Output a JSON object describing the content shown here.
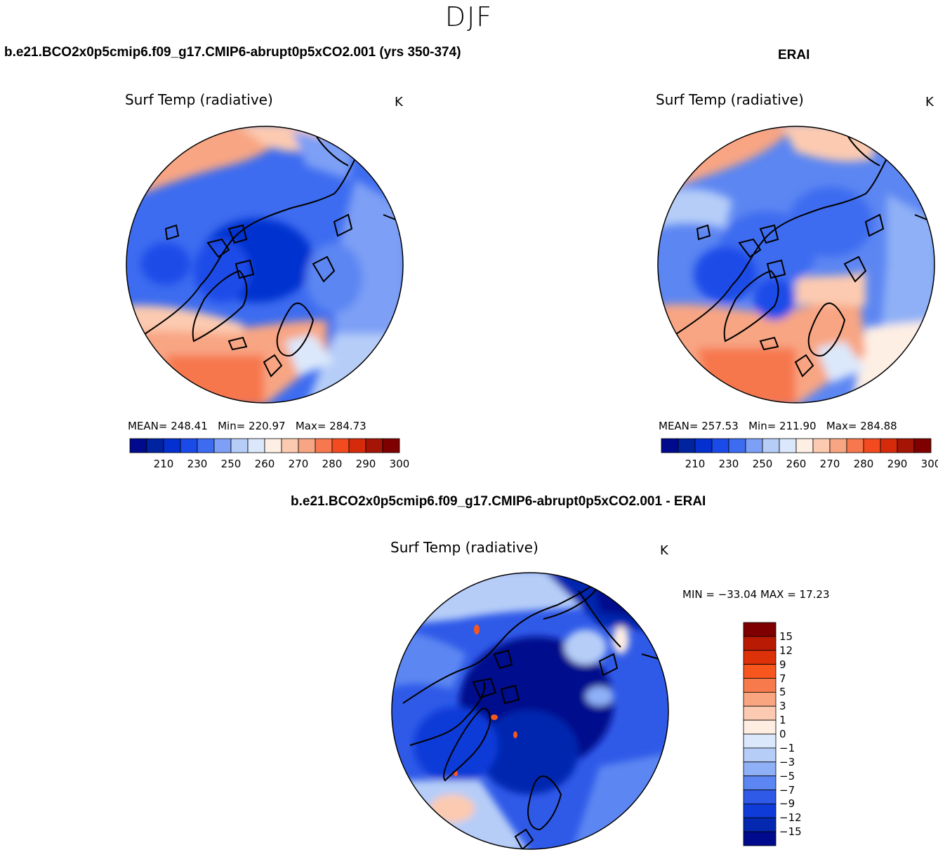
{
  "season": "DJF",
  "panels": {
    "model": {
      "case_title": "b.e21.BCO2x0p5cmip6.f09_g17.CMIP6-abrupt0p5xCO2.001 (yrs 350-374)",
      "plot_title": "Surf Temp (radiative)",
      "units": "K",
      "mean_label": "MEAN=",
      "mean": "248.41",
      "min_label": "Min=",
      "min": "220.97",
      "max_label": "Max=",
      "max": "284.73"
    },
    "obs": {
      "case_title": "ERAI",
      "plot_title": "Surf Temp (radiative)",
      "units": "K",
      "mean_label": "MEAN=",
      "mean": "257.53",
      "min_label": "Min=",
      "min": "211.90",
      "max_label": "Max=",
      "max": "284.88"
    },
    "diff": {
      "case_title": "b.e21.BCO2x0p5cmip6.f09_g17.CMIP6-abrupt0p5xCO2.001 - ERAI",
      "plot_title": "Surf Temp (radiative)",
      "units": "K",
      "minmax_text": "MIN = −33.04 MAX =   17.23"
    }
  },
  "abs_colorbar": {
    "colors": [
      "#000a8c",
      "#00239f",
      "#0330cf",
      "#1a4be8",
      "#3d6cf0",
      "#7d9ff5",
      "#b6cdf8",
      "#dbe8fb",
      "#feefe4",
      "#fccab0",
      "#f8a583",
      "#f7774e",
      "#f34b1f",
      "#d52b0a",
      "#a51506",
      "#7e0000"
    ],
    "tick_labels": [
      "210",
      "230",
      "250",
      "260",
      "270",
      "280",
      "290",
      "300"
    ]
  },
  "diff_colorbar": {
    "colors_top_to_bottom": [
      "#7e0000",
      "#b81a04",
      "#dd3209",
      "#f7571f",
      "#f77a4c",
      "#f8a580",
      "#fccab0",
      "#feeee2",
      "#dbe8fb",
      "#b6cdf8",
      "#8fb0f6",
      "#5c86f2",
      "#2f5ae8",
      "#0f3bd8",
      "#0428b0",
      "#000a8c"
    ],
    "tick_labels": [
      "15",
      "12",
      "9",
      "7",
      "5",
      "3",
      "1",
      "0",
      "−1",
      "−3",
      "−5",
      "−7",
      "−9",
      "−12",
      "−15"
    ]
  }
}
